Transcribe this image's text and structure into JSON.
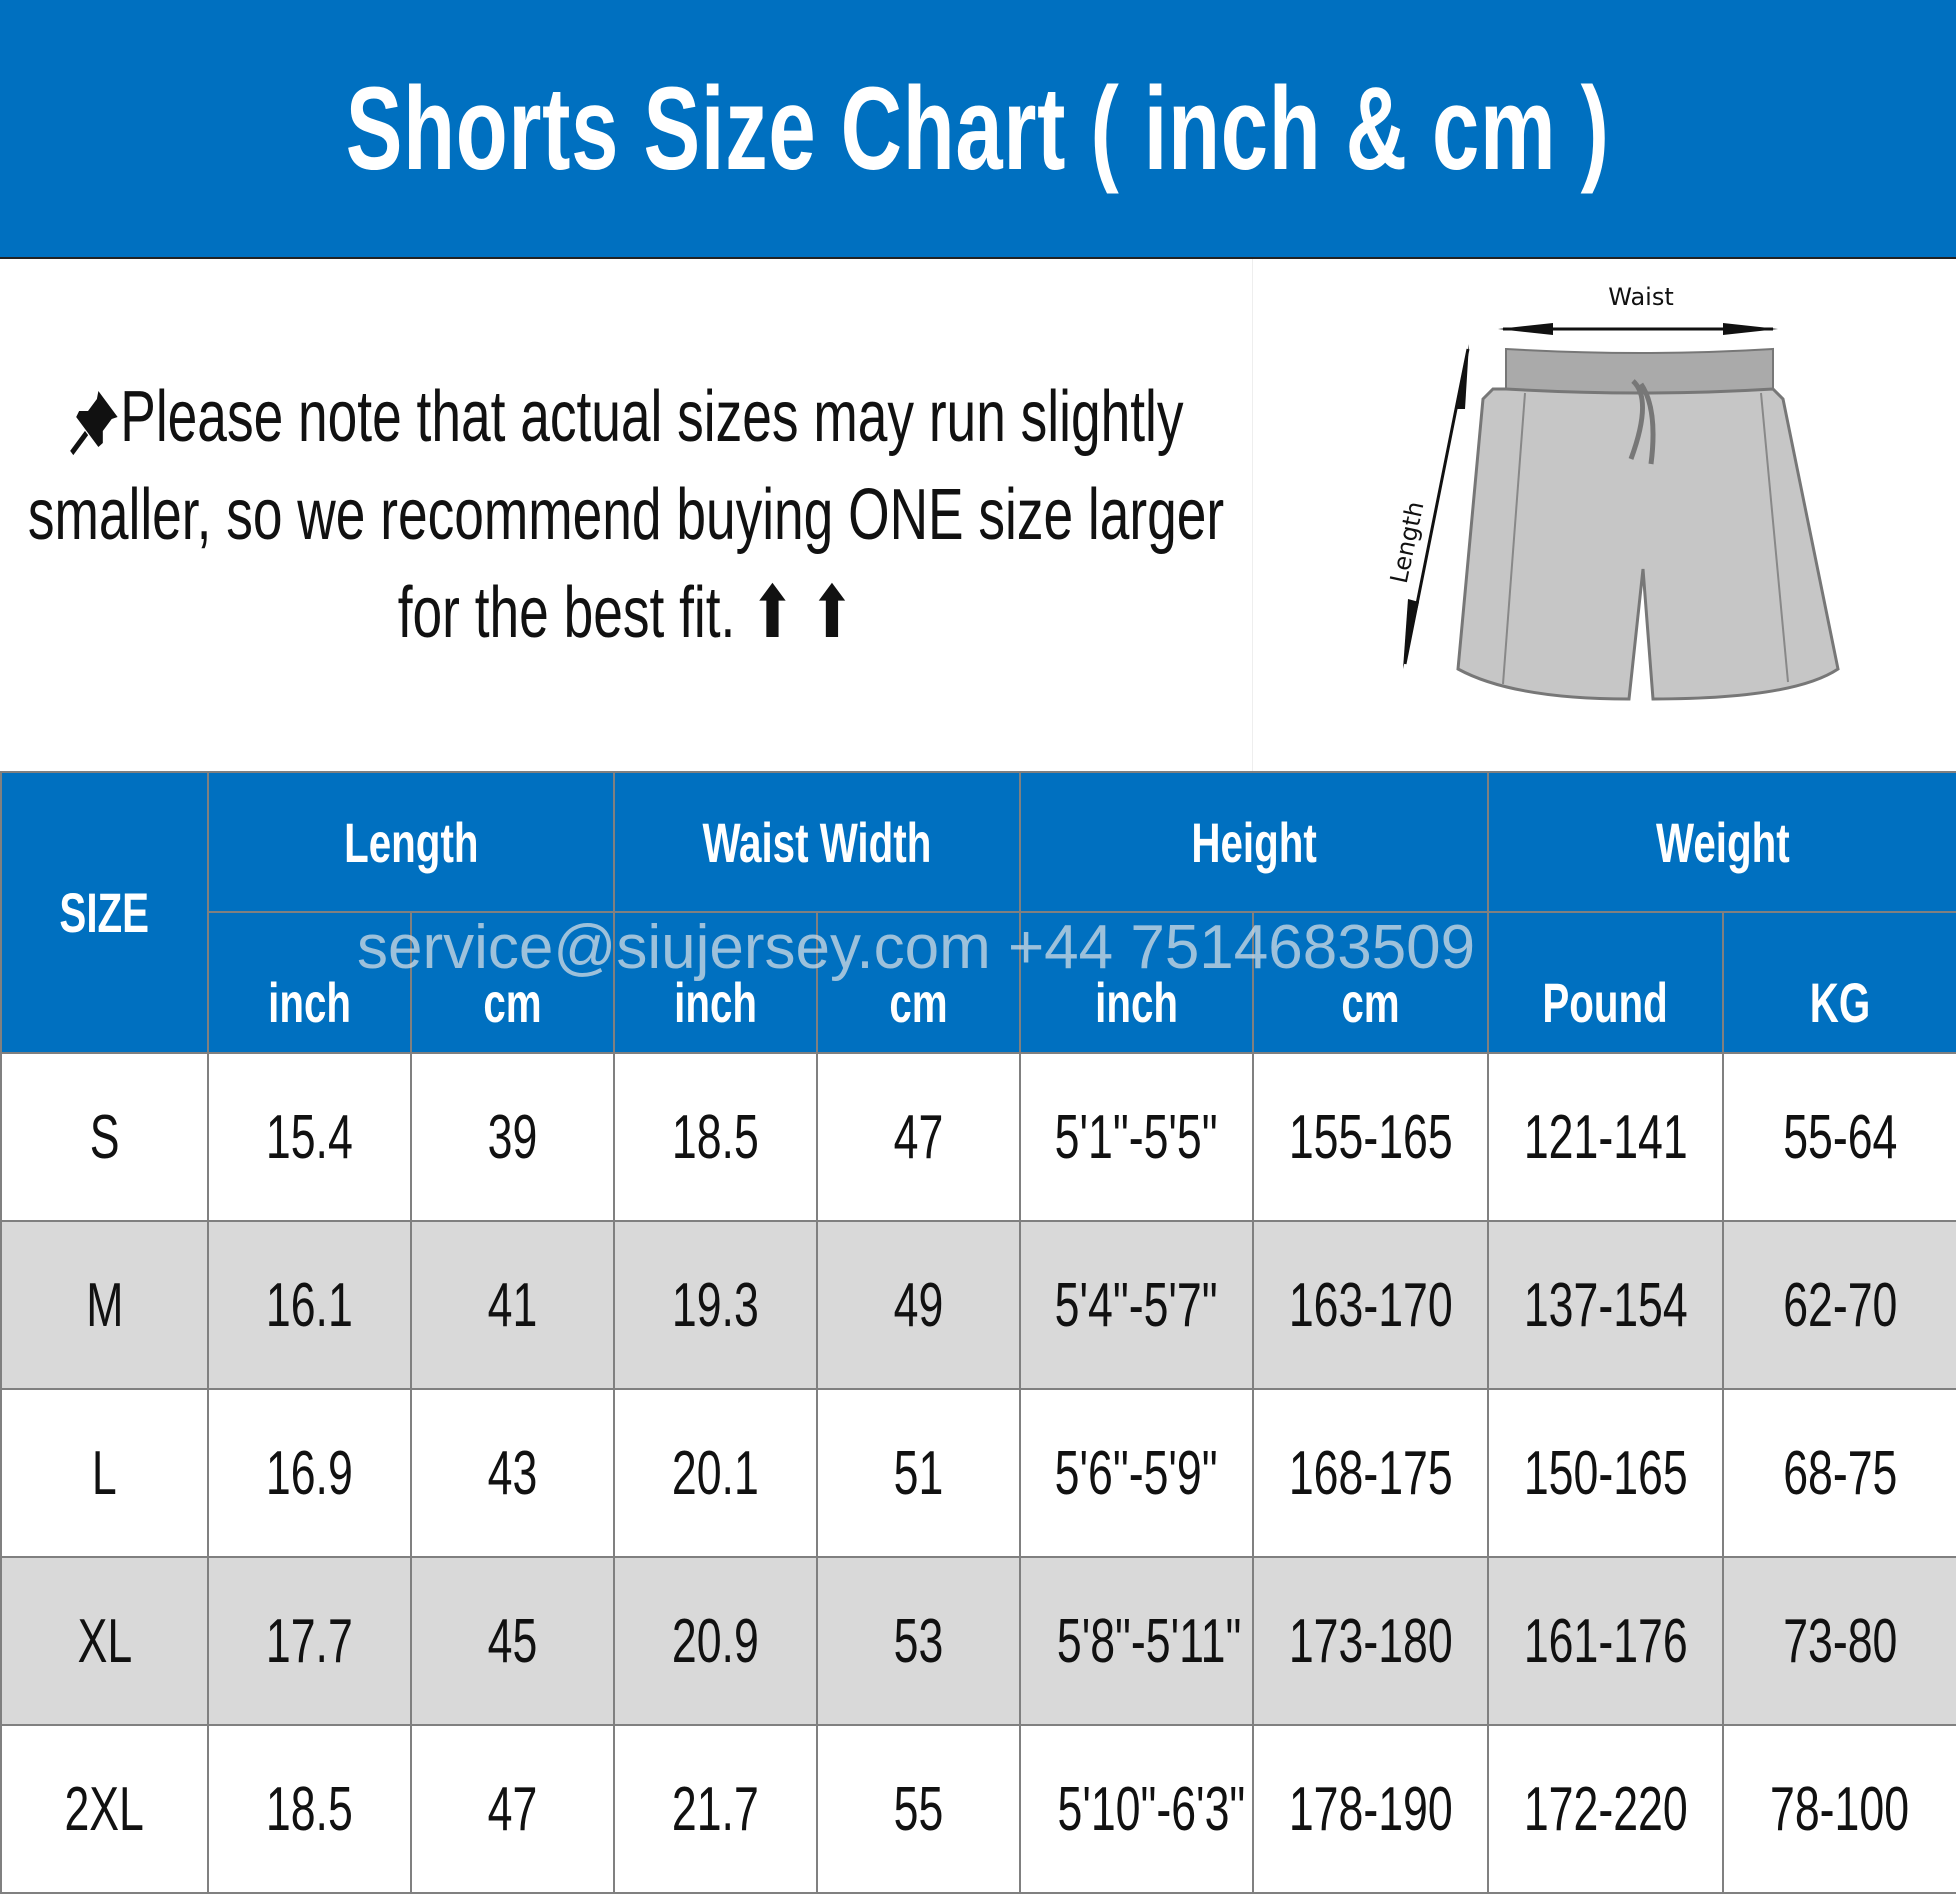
{
  "title": "Shorts Size Chart ( inch & cm )",
  "note": "Please note that actual sizes may run slightly smaller, so we recommend buying ONE size larger for the best fit. ⬆ ⬆",
  "diagram": {
    "waist_label": "Waist",
    "length_label": "Length"
  },
  "watermark": "service@siujersey.com  +44 7514683509",
  "table": {
    "size_header": "SIZE",
    "groups": [
      "Length",
      "Waist Width",
      "Height",
      "Weight"
    ],
    "units": [
      "inch",
      "cm",
      "inch",
      "cm",
      "inch",
      "cm",
      "Pound",
      "KG"
    ],
    "rows": [
      [
        "S",
        "15.4",
        "39",
        "18.5",
        "47",
        "5'1\"-5'5\"",
        "155-165",
        "121-141",
        "55-64"
      ],
      [
        "M",
        "16.1",
        "41",
        "19.3",
        "49",
        "5'4\"-5'7\"",
        "163-170",
        "137-154",
        "62-70"
      ],
      [
        "L",
        "16.9",
        "43",
        "20.1",
        "51",
        "5'6\"-5'9\"",
        "168-175",
        "150-165",
        "68-75"
      ],
      [
        "XL",
        "17.7",
        "45",
        "20.9",
        "53",
        "5'8\"-5'11\"",
        "173-180",
        "161-176",
        "73-80"
      ],
      [
        "2XL",
        "18.5",
        "47",
        "21.7",
        "55",
        "5'10\"-6'3\"",
        "178-190",
        "172-220",
        "78-100"
      ]
    ]
  },
  "colors": {
    "header_bg": "#0070c0",
    "alt_row": "#d9d9d9",
    "border": "#808080"
  }
}
